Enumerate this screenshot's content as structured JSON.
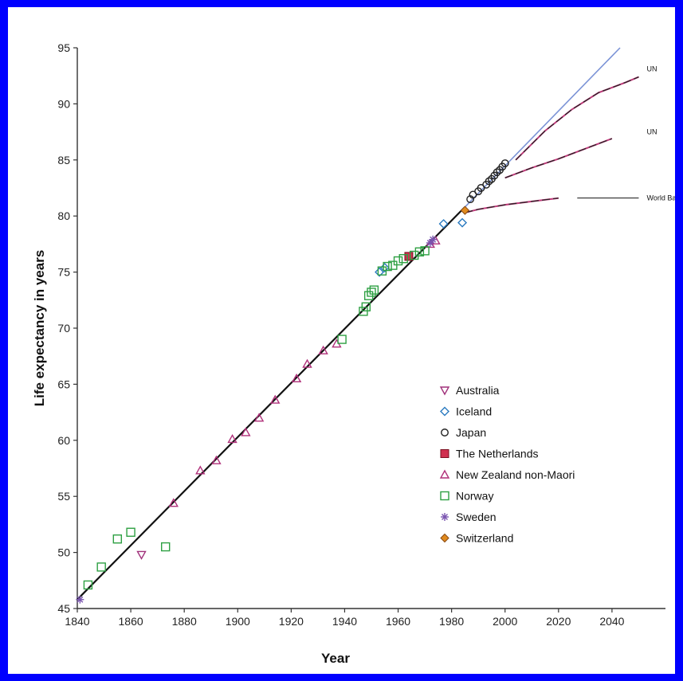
{
  "chart_data": {
    "type": "scatter",
    "title": "",
    "xlabel": "Year",
    "ylabel": "Life expectancy in years",
    "xlim": [
      1840,
      2060
    ],
    "ylim": [
      45,
      95
    ],
    "x_ticks": [
      1840,
      1860,
      1880,
      1900,
      1920,
      1940,
      1960,
      1980,
      2000,
      2020,
      2040
    ],
    "y_ticks": [
      45,
      50,
      55,
      60,
      65,
      70,
      75,
      80,
      85,
      90,
      95
    ],
    "legend_position": "bottom-right",
    "grid": false,
    "series": [
      {
        "name": "Australia",
        "marker": "triangle-down",
        "color": "#a0307a",
        "points": [
          [
            1864,
            49.8
          ]
        ]
      },
      {
        "name": "Iceland",
        "marker": "diamond",
        "color": "#2a7ac0",
        "points": [
          [
            1953,
            75.0
          ],
          [
            1955,
            75.4
          ],
          [
            1977,
            79.3
          ],
          [
            1984,
            79.4
          ]
        ]
      },
      {
        "name": "Japan",
        "marker": "circle",
        "color": "#222222",
        "points": [
          [
            1987,
            81.5
          ],
          [
            1988,
            81.9
          ],
          [
            1990,
            82.2
          ],
          [
            1991,
            82.5
          ],
          [
            1993,
            82.8
          ],
          [
            1994,
            83.1
          ],
          [
            1995,
            83.3
          ],
          [
            1996,
            83.6
          ],
          [
            1997,
            83.9
          ],
          [
            1998,
            84.1
          ],
          [
            1999,
            84.4
          ],
          [
            2000,
            84.7
          ]
        ]
      },
      {
        "name": "The Netherlands",
        "marker": "square-filled",
        "color": "#d03050",
        "points": [
          [
            1964,
            76.4
          ]
        ]
      },
      {
        "name": "New Zealand non-Maori",
        "marker": "triangle-up",
        "color": "#b0307a",
        "points": [
          [
            1876,
            54.4
          ],
          [
            1886,
            57.3
          ],
          [
            1892,
            58.2
          ],
          [
            1898,
            60.1
          ],
          [
            1903,
            60.7
          ],
          [
            1908,
            62.0
          ],
          [
            1914,
            63.6
          ],
          [
            1922,
            65.5
          ],
          [
            1926,
            66.8
          ],
          [
            1932,
            68.0
          ],
          [
            1937,
            68.6
          ],
          [
            1972,
            77.5
          ],
          [
            1974,
            77.8
          ]
        ]
      },
      {
        "name": "Norway",
        "marker": "square",
        "color": "#2ea043",
        "points": [
          [
            1844,
            47.1
          ],
          [
            1849,
            48.7
          ],
          [
            1855,
            51.2
          ],
          [
            1860,
            51.8
          ],
          [
            1873,
            50.5
          ],
          [
            1939,
            69.0
          ],
          [
            1947,
            71.5
          ],
          [
            1948,
            71.9
          ],
          [
            1949,
            72.9
          ],
          [
            1950,
            73.2
          ],
          [
            1951,
            73.4
          ],
          [
            1954,
            75.1
          ],
          [
            1956,
            75.5
          ],
          [
            1958,
            75.6
          ],
          [
            1960,
            76.0
          ],
          [
            1962,
            76.2
          ],
          [
            1966,
            76.5
          ],
          [
            1968,
            76.8
          ],
          [
            1970,
            76.9
          ]
        ]
      },
      {
        "name": "Sweden",
        "marker": "asterisk",
        "color": "#7a55b0",
        "points": [
          [
            1841,
            45.8
          ],
          [
            1972,
            77.6
          ],
          [
            1973,
            77.9
          ]
        ]
      },
      {
        "name": "Switzerland",
        "marker": "diamond-filled",
        "color": "#e08a1e",
        "points": [
          [
            1985,
            80.5
          ]
        ]
      }
    ],
    "trend_line": {
      "x": [
        1840,
        1985
      ],
      "y": [
        45.8,
        80.8
      ]
    },
    "extrapolation_line": {
      "x": [
        1985,
        2043
      ],
      "y": [
        80.8,
        95.0
      ]
    },
    "projections": [
      {
        "label": "UN",
        "x": [
          2004,
          2015,
          2025,
          2035,
          2045,
          2050
        ],
        "y": [
          85.0,
          87.6,
          89.5,
          91.0,
          91.9,
          92.4
        ]
      },
      {
        "label": "UN",
        "x": [
          2000,
          2010,
          2020,
          2030,
          2040
        ],
        "y": [
          83.4,
          84.3,
          85.1,
          86.0,
          86.9
        ]
      },
      {
        "label": "World Bank, UN",
        "x": [
          1985,
          1990,
          2000,
          2010,
          2020
        ],
        "y": [
          80.3,
          80.6,
          81.0,
          81.3,
          81.6
        ]
      }
    ]
  }
}
